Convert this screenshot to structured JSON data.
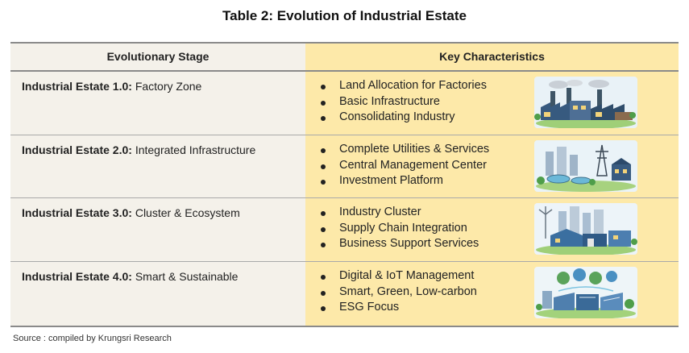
{
  "title": "Table 2: Evolution of Industrial Estate",
  "headers": {
    "stage": "Evolutionary Stage",
    "characteristics": "Key Characteristics"
  },
  "rows": [
    {
      "stage_bold": "Industrial Estate 1.0:",
      "stage_rest": " Factory Zone",
      "characteristics": [
        "Land Allocation for Factories",
        "Basic Infrastructure",
        "Consolidating Industry"
      ],
      "illustration_icon": "factory-zone-illustration"
    },
    {
      "stage_bold": "Industrial Estate 2.0:",
      "stage_rest": " Integrated Infrastructure",
      "characteristics": [
        "Complete Utilities & Services",
        "Central Management Center",
        "Investment Platform"
      ],
      "illustration_icon": "integrated-infrastructure-illustration"
    },
    {
      "stage_bold": "Industrial Estate 3.0:",
      "stage_rest": " Cluster & Ecosystem",
      "characteristics": [
        "Industry Cluster",
        "Supply Chain Integration",
        "Business Support Services"
      ],
      "illustration_icon": "cluster-ecosystem-illustration"
    },
    {
      "stage_bold": "Industrial Estate 4.0:",
      "stage_rest": " Smart & Sustainable",
      "characteristics": [
        "Digital & IoT Management",
        "Smart, Green, Low-carbon",
        "ESG Focus"
      ],
      "illustration_icon": "smart-sustainable-illustration"
    }
  ],
  "source": "Source : compiled by Krungsri Research",
  "colors": {
    "left_column": "#f4f1ea",
    "right_column": "#fde9a9",
    "rule": "#a9a9a9"
  }
}
